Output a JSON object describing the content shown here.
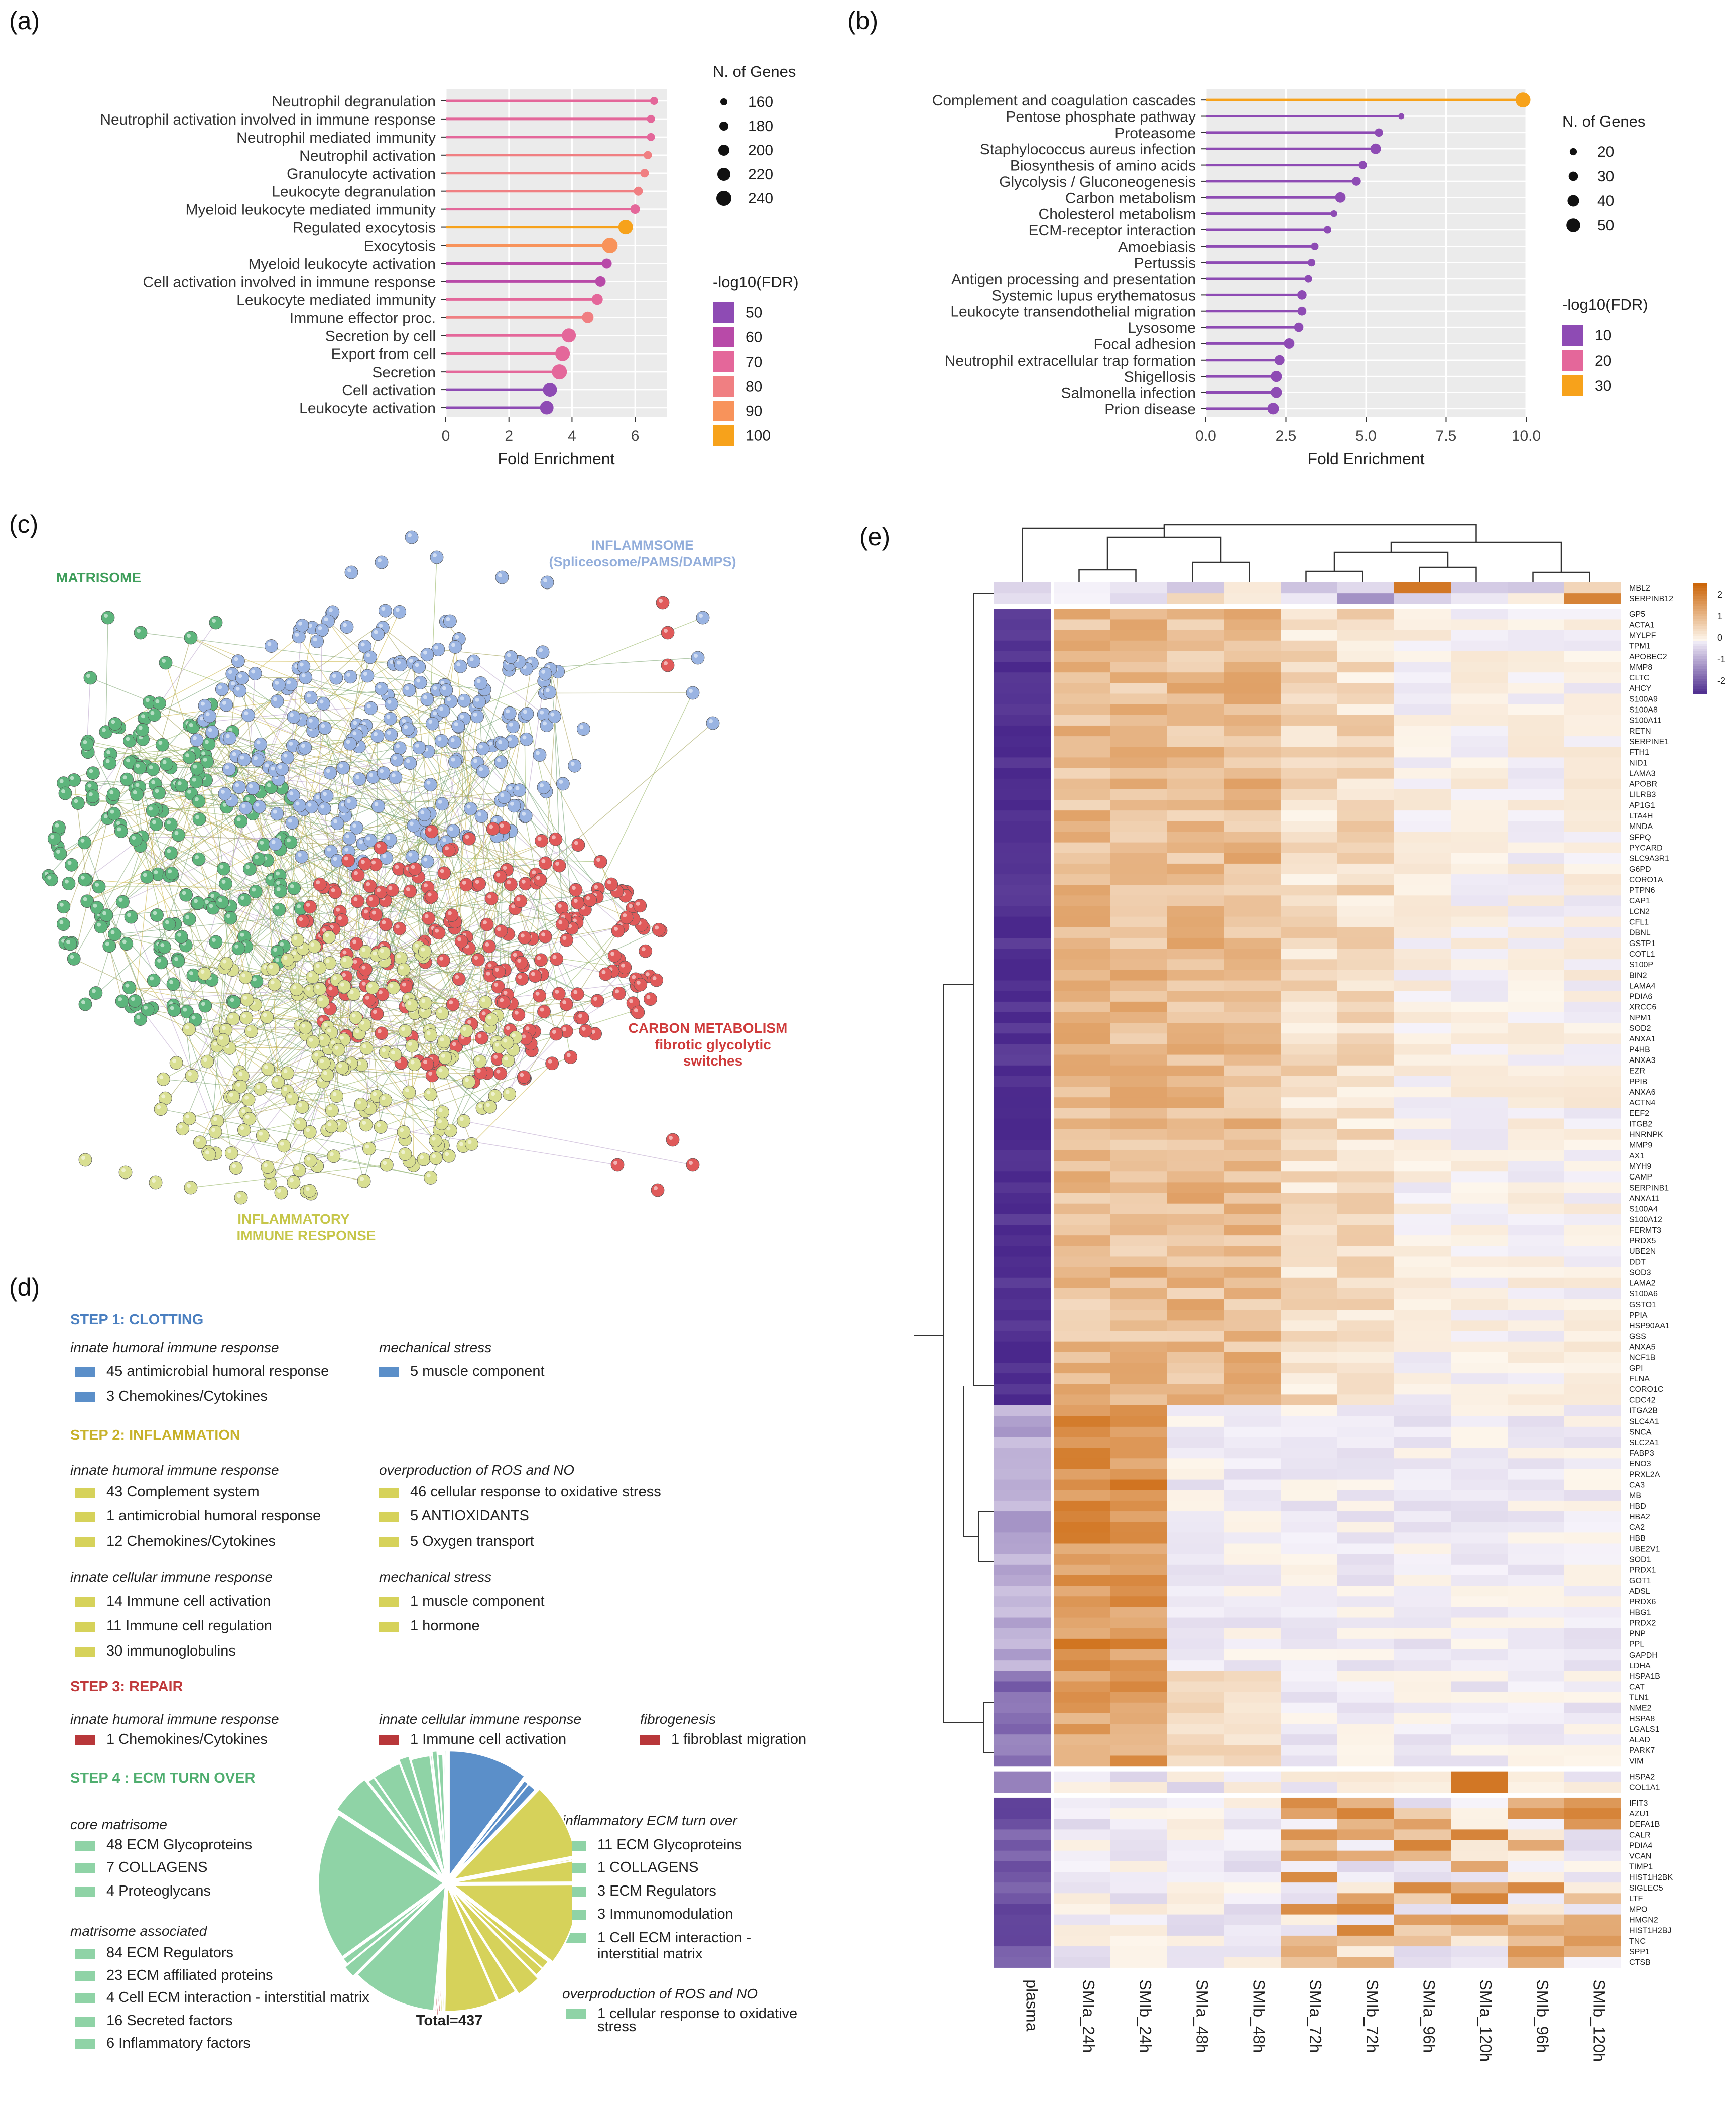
{
  "panel_labels": {
    "a": "(a)",
    "b": "(b)",
    "c": "(c)",
    "d": "(d)",
    "e": "(e)"
  },
  "colors": {
    "c50": "#8e4bb4",
    "c60": "#b84aa8",
    "c70": "#e4679a",
    "c80": "#f07f82",
    "c90": "#f8935b",
    "c100": "#f7a21b",
    "purple": "#8e4bb4",
    "pink": "#e4679a",
    "orange": "#f7a21b",
    "clot": "#5b8fc9",
    "infl": "#d6d25a",
    "repair": "#b8373a",
    "ecm": "#8fd3a6",
    "matrisome": "#3f9e5b",
    "inflammasome": "#93aedb",
    "carbon": "#cf3b3b",
    "immune": "#c6c64a"
  },
  "chart_data": [
    {
      "type": "lollipop",
      "panel": "(a)",
      "xlabel": "Fold Enrichment",
      "xlim": [
        0,
        7
      ],
      "xticks": [
        0,
        2,
        4,
        6
      ],
      "size_legend_title": "N. of Genes",
      "size_legend": [
        160,
        180,
        200,
        220,
        240
      ],
      "color_legend_title": "-log10(FDR)",
      "color_legend": [
        50,
        60,
        70,
        80,
        90,
        100
      ],
      "categories": [
        "Neutrophil degranulation",
        "Neutrophil activation involved in immune response",
        "Neutrophil mediated immunity",
        "Neutrophil activation",
        "Granulocyte activation",
        "Leukocyte degranulation",
        "Myeloid leukocyte mediated immunity",
        "Regulated exocytosis",
        "Exocytosis",
        "Myeloid leukocyte activation",
        "Cell activation involved in immune response",
        "Leukocyte mediated immunity",
        "Immune effector proc.",
        "Secretion by cell",
        "Export from cell",
        "Secretion",
        "Cell activation",
        "Leukocyte activation"
      ],
      "values": [
        6.6,
        6.5,
        6.5,
        6.4,
        6.3,
        6.1,
        6.0,
        5.7,
        5.2,
        5.1,
        4.9,
        4.8,
        4.5,
        3.9,
        3.7,
        3.6,
        3.3,
        3.2
      ],
      "genes": [
        170,
        170,
        170,
        172,
        175,
        180,
        185,
        235,
        245,
        190,
        195,
        200,
        205,
        230,
        235,
        240,
        230,
        225
      ],
      "fdr": [
        75,
        75,
        75,
        76,
        77,
        78,
        72,
        100,
        90,
        62,
        63,
        70,
        85,
        72,
        74,
        75,
        55,
        55
      ]
    },
    {
      "type": "lollipop",
      "panel": "(b)",
      "xlabel": "Fold Enrichment",
      "xlim": [
        0,
        10
      ],
      "xticks": [
        "0.0",
        "2.5",
        "5.0",
        "7.5",
        "10.0"
      ],
      "size_legend_title": "N. of Genes",
      "size_legend": [
        20,
        30,
        40,
        50
      ],
      "color_legend_title": "-log10(FDR)",
      "color_legend": [
        10,
        20,
        30
      ],
      "categories": [
        "Complement and coagulation cascades",
        "Pentose phosphate pathway",
        "Proteasome",
        "Staphylococcus aureus infection",
        "Biosynthesis of amino acids",
        "Glycolysis / Gluconeogenesis",
        "Carbon metabolism",
        "Cholesterol metabolism",
        "ECM-receptor interaction",
        "Amoebiasis",
        "Pertussis",
        "Antigen processing and presentation",
        "Systemic lupus erythematosus",
        "Leukocyte transendothelial migration",
        "Lysosome",
        "Focal adhesion",
        "Neutrophil extracellular trap formation",
        "Shigellosis",
        "Salmonella infection",
        "Prion disease"
      ],
      "values": [
        9.9,
        6.1,
        5.4,
        5.3,
        4.9,
        4.7,
        4.2,
        4.0,
        3.8,
        3.4,
        3.3,
        3.2,
        3.0,
        3.0,
        2.9,
        2.6,
        2.3,
        2.2,
        2.2,
        2.1
      ],
      "genes": [
        55,
        15,
        25,
        35,
        25,
        28,
        35,
        18,
        22,
        22,
        22,
        22,
        30,
        28,
        30,
        35,
        33,
        38,
        38,
        40
      ],
      "fdr": [
        32,
        8,
        10,
        11,
        9,
        9,
        11,
        7,
        8,
        8,
        8,
        8,
        10,
        9,
        10,
        11,
        10,
        11,
        11,
        11
      ]
    }
  ],
  "network": {
    "matrisome": "MATRISOME",
    "inflammasome": "INFLAMMSOME",
    "inflammasome_sub": "(Spliceosome/PAMS/DAMPS)",
    "carbon1": "CARBON METABOLISM",
    "carbon2": "fibrotic glycolytic",
    "carbon3": "switches",
    "immune1": "INFLAMMATORY",
    "immune2": "IMMUNE RESPONSE"
  },
  "steps": {
    "s1": "STEP 1: CLOTTING",
    "s1_sub1": "innate humoral immune response",
    "s1_i1": "45 antimicrobial humoral response",
    "s1_i2": "3 Chemokines/Cytokines",
    "s1_sub2": "mechanical stress",
    "s1_i3": "5 muscle component",
    "s2": "STEP 2: INFLAMMATION",
    "s2_sub1": "innate humoral immune response",
    "s2_i1": "43 Complement system",
    "s2_i2": "1 antimicrobial humoral response",
    "s2_i3": "12 Chemokines/Cytokines",
    "s2_sub2": "overproduction of ROS and NO",
    "s2_i4": "46 cellular response to oxidative stress",
    "s2_i5": "5 ANTIOXIDANTS",
    "s2_i6": "5 Oxygen transport",
    "s2_sub3": "innate cellular immune response",
    "s2_i7": "14 Immune cell activation",
    "s2_i8": "11 Immune cell regulation",
    "s2_i9": "30 immunoglobulins",
    "s2_sub4": "mechanical stress",
    "s2_i10": "1 muscle component",
    "s2_i11": "1 hormone",
    "s3": "STEP 3: REPAIR",
    "s3_sub1": "innate humoral immune response",
    "s3_i1": "1 Chemokines/Cytokines",
    "s3_sub2": "innate cellular immune response",
    "s3_i2": "1 Immune cell activation",
    "s3_sub3": "fibrogenesis",
    "s3_i3": "1 fibroblast migration",
    "s4": "STEP 4 : ECM TURN OVER",
    "s4_sub1": "core matrisome",
    "s4_i1": "48 ECM Glycoproteins",
    "s4_i2": "7 COLLAGENS",
    "s4_i3": "4 Proteoglycans",
    "s4_sub2": "matrisome associated",
    "s4_i4": "84 ECM Regulators",
    "s4_i5": "23 ECM affiliated proteins",
    "s4_i6": "4 Cell ECM interaction - interstitial matrix",
    "s4_i7": "16 Secreted factors",
    "s4_i8": "6 Inflammatory factors",
    "s4_sub3": "inflammatory ECM turn over",
    "s4_i9": "11 ECM Glycoproteins",
    "s4_i10": "1 COLLAGENS",
    "s4_i11": "3 ECM Regulators",
    "s4_i12": "3 Immunomodulation",
    "s4_i13": "1 Cell ECM interaction - interstitial matrix",
    "s4_sub4": "overproduction of ROS and NO",
    "s4_i14": "1 cellular response to oxidative stress",
    "total": "Total=437",
    "pie_values": [
      45,
      3,
      5,
      43,
      1,
      12,
      46,
      5,
      5,
      14,
      11,
      30,
      1,
      1,
      1,
      1,
      1,
      48,
      7,
      4,
      84,
      23,
      4,
      16,
      6,
      11,
      1,
      3,
      3,
      1,
      1
    ]
  },
  "heatmap": {
    "columns": [
      "plasma",
      "SMIa_24h",
      "SMIb_24h",
      "SMIa_48h",
      "SMIb_48h",
      "SMIa_72h",
      "SMIb_72h",
      "SMIa_96h",
      "SMIa_120h",
      "SMIb_96h",
      "SMIb_120h"
    ],
    "legend_ticks": [
      "2",
      "1",
      "0",
      "-1",
      "-2"
    ],
    "top_rows": [
      "MBL2",
      "SERPINB12"
    ],
    "group1_rows": [
      "GP5",
      "ACTA1",
      "MYLPF",
      "TPM1",
      "APOBEC2",
      "MMP8",
      "CLTC",
      "AHCY",
      "S100A9",
      "S100A8",
      "S100A11",
      "RETN",
      "SERPINE1",
      "FTH1",
      "NID1",
      "LAMA3",
      "APOBR",
      "LILRB3",
      "AP1G1",
      "LTA4H",
      "MNDA",
      "SFPQ",
      "PYCARD",
      "SLC9A3R1",
      "G6PD",
      "CORO1A",
      "PTPN6",
      "CAP1",
      "LCN2",
      "CFL1",
      "DBNL",
      "GSTP1",
      "COTL1",
      "S100P",
      "BIN2",
      "LAMA4",
      "PDIA6",
      "XRCC6",
      "NPM1",
      "SOD2",
      "ANXA1",
      "P4HB",
      "ANXA3",
      "EZR",
      "PPIB",
      "ANXA6",
      "ACTN4",
      "EEF2",
      "ITGB2",
      "HNRNPK",
      "MMP9",
      "AX1",
      "MYH9",
      "CAMP",
      "SERPINB1",
      "ANXA11",
      "S100A4",
      "S100A12",
      "FERMT3",
      "PRDX5",
      "UBE2N",
      "DDT",
      "SOD3",
      "LAMA2",
      "S100A6",
      "GSTO1",
      "PPIA",
      "HSP90AA1",
      "GSS",
      "ANXA5",
      "NCF1B",
      "GPI",
      "FLNA",
      "CORO1C",
      "CDC42",
      "ITGA2B",
      "SLC4A1",
      "SNCA",
      "SLC2A1",
      "FABP3",
      "ENO3",
      "PRXL2A",
      "CA3",
      "MB",
      "HBD",
      "HBA2",
      "CA2",
      "HBB",
      "UBE2V1",
      "SOD1",
      "PRDX1",
      "GOT1",
      "ADSL",
      "PRDX6",
      "HBG1",
      "PRDX2",
      "PNP",
      "PPL",
      "GAPDH",
      "LDHA",
      "HSPA1B",
      "CAT",
      "TLN1",
      "NME2",
      "HSPA8",
      "LGALS1",
      "ALAD",
      "PARK7",
      "VIM"
    ],
    "group2_rows": [
      "HSPA2",
      "COL1A1"
    ],
    "group3_rows": [
      "IFIT3",
      "AZU1",
      "DEFA1B",
      "CALR",
      "PDIA4",
      "VCAN",
      "TIMP1",
      "HIST1H2BK",
      "SIGLEC5",
      "LTF",
      "MPO",
      "HMGN2",
      "HIST1H2BJ",
      "TNC",
      "SPP1",
      "CTSB"
    ]
  }
}
